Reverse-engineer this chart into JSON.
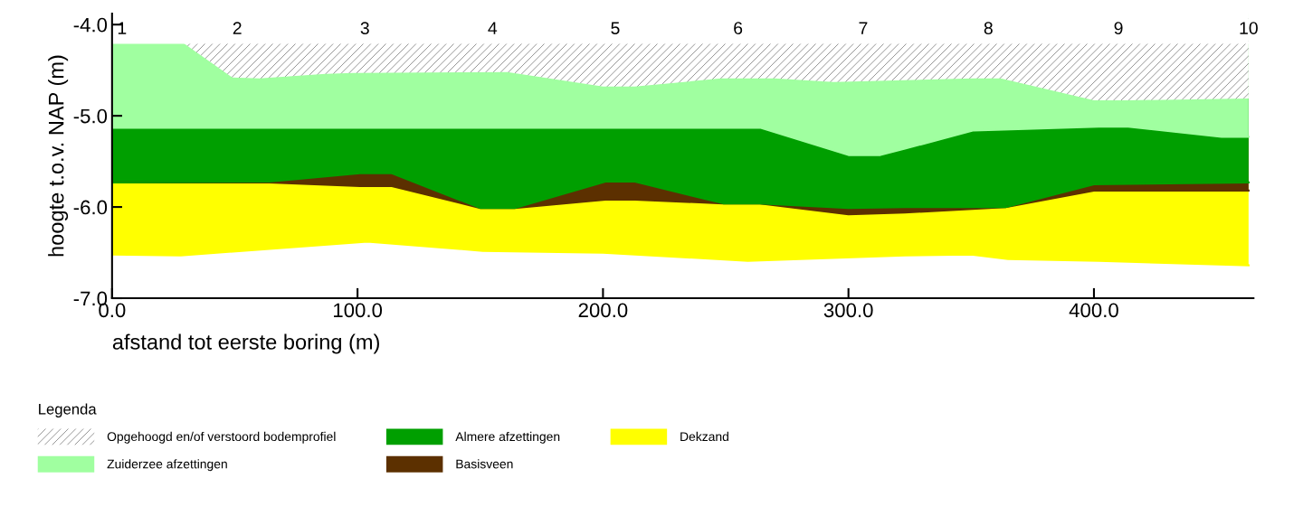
{
  "chart_data": {
    "type": "area",
    "xlabel": "afstand tot eerste boring (m)",
    "ylabel": "hoogte t.o.v. NAP (m)",
    "legend_title": "Legenda",
    "legend": "bottom",
    "grid": false,
    "xlim": [
      0,
      465
    ],
    "xticks": [
      {
        "value": 0,
        "label": "0.0"
      },
      {
        "value": 100,
        "label": "100.0"
      },
      {
        "value": 200,
        "label": "200.0"
      },
      {
        "value": 300,
        "label": "300.0"
      },
      {
        "value": 400,
        "label": "400.0"
      }
    ],
    "ylim": [
      -7.0,
      -3.88
    ],
    "yticks": [
      {
        "value": -7,
        "label": "-7.0"
      },
      {
        "value": -6,
        "label": "-6.0"
      },
      {
        "value": -5,
        "label": "-5.0"
      },
      {
        "value": -4,
        "label": "-4.0"
      }
    ],
    "annotations": [
      {
        "text": "1",
        "x": 0,
        "y": -4.2
      },
      {
        "text": "2",
        "x": 51,
        "y": -4.2
      },
      {
        "text": "3",
        "x": 103,
        "y": -4.2
      },
      {
        "text": "4",
        "x": 155,
        "y": -4.2
      },
      {
        "text": "5",
        "x": 205,
        "y": -4.2
      },
      {
        "text": "6",
        "x": 255,
        "y": -4.2
      },
      {
        "text": "7",
        "x": 306,
        "y": -4.2
      },
      {
        "text": "8",
        "x": 357,
        "y": -4.2
      },
      {
        "text": "9",
        "x": 410,
        "y": -4.2
      },
      {
        "text": "10",
        "x": 463,
        "y": -4.2
      }
    ],
    "series": [
      {
        "name": "Dekzand",
        "color": "#ffff00",
        "x": [
          0,
          28,
          104,
          151,
          200,
          259,
          323,
          350,
          365,
          402,
          463
        ],
        "values": [
          -6.52,
          -6.53,
          -6.38,
          -6.48,
          -6.5,
          -6.59,
          -6.53,
          -6.52,
          -6.57,
          -6.59,
          -6.64
        ]
      },
      {
        "name": "Basisveen",
        "color": "#5c3000",
        "x": [
          0,
          64,
          101,
          114,
          150,
          164,
          201,
          213,
          249,
          264,
          300,
          323,
          364,
          400,
          463
        ],
        "values": [
          -5.73,
          -5.73,
          -5.77,
          -5.77,
          -6.01,
          -6.01,
          -5.92,
          -5.92,
          -5.96,
          -5.96,
          -6.08,
          -6.06,
          -6.0,
          -5.82,
          -5.82
        ]
      },
      {
        "name": "Almere afzettingen",
        "color": "#009f00",
        "x": [
          0,
          64,
          101,
          114,
          150,
          164,
          201,
          213,
          249,
          264,
          300,
          323,
          364,
          400,
          463
        ],
        "values": [
          -5.73,
          -5.72,
          -5.63,
          -5.63,
          -6.01,
          -6.01,
          -5.72,
          -5.72,
          -5.96,
          -5.96,
          -6.01,
          -6.0,
          -6.0,
          -5.75,
          -5.73
        ]
      },
      {
        "name": "Zuiderzee afzettingen",
        "color": "#a0ffa0",
        "x": [
          0,
          264,
          300,
          313,
          323,
          351,
          402,
          414,
          452,
          463
        ],
        "values": [
          -5.13,
          -5.13,
          -5.43,
          -5.43,
          -5.36,
          -5.16,
          -5.12,
          -5.12,
          -5.23,
          -5.23
        ]
      },
      {
        "name": "Opgehoogd en/of verstoord bodemprofiel",
        "color": "#ffffff",
        "x": [
          0,
          29,
          49,
          60,
          87,
          98,
          161,
          200,
          213,
          248,
          270,
          294,
          351,
          362,
          400,
          414,
          463
        ],
        "values": [
          -4.2,
          -4.2,
          -4.58,
          -4.59,
          -4.54,
          -4.53,
          -4.52,
          -4.68,
          -4.68,
          -4.59,
          -4.59,
          -4.63,
          -4.59,
          -4.59,
          -4.83,
          -4.83,
          -4.81
        ]
      },
      {
        "color": "#ffffff",
        "x": [
          0,
          51,
          103,
          155,
          205,
          255,
          306,
          357,
          410,
          463
        ],
        "values": [
          -4.2,
          -4.2,
          -4.2,
          -4.2,
          -4.2,
          -4.2,
          -4.2,
          -4.2,
          -4.2,
          -4.2
        ]
      }
    ]
  }
}
